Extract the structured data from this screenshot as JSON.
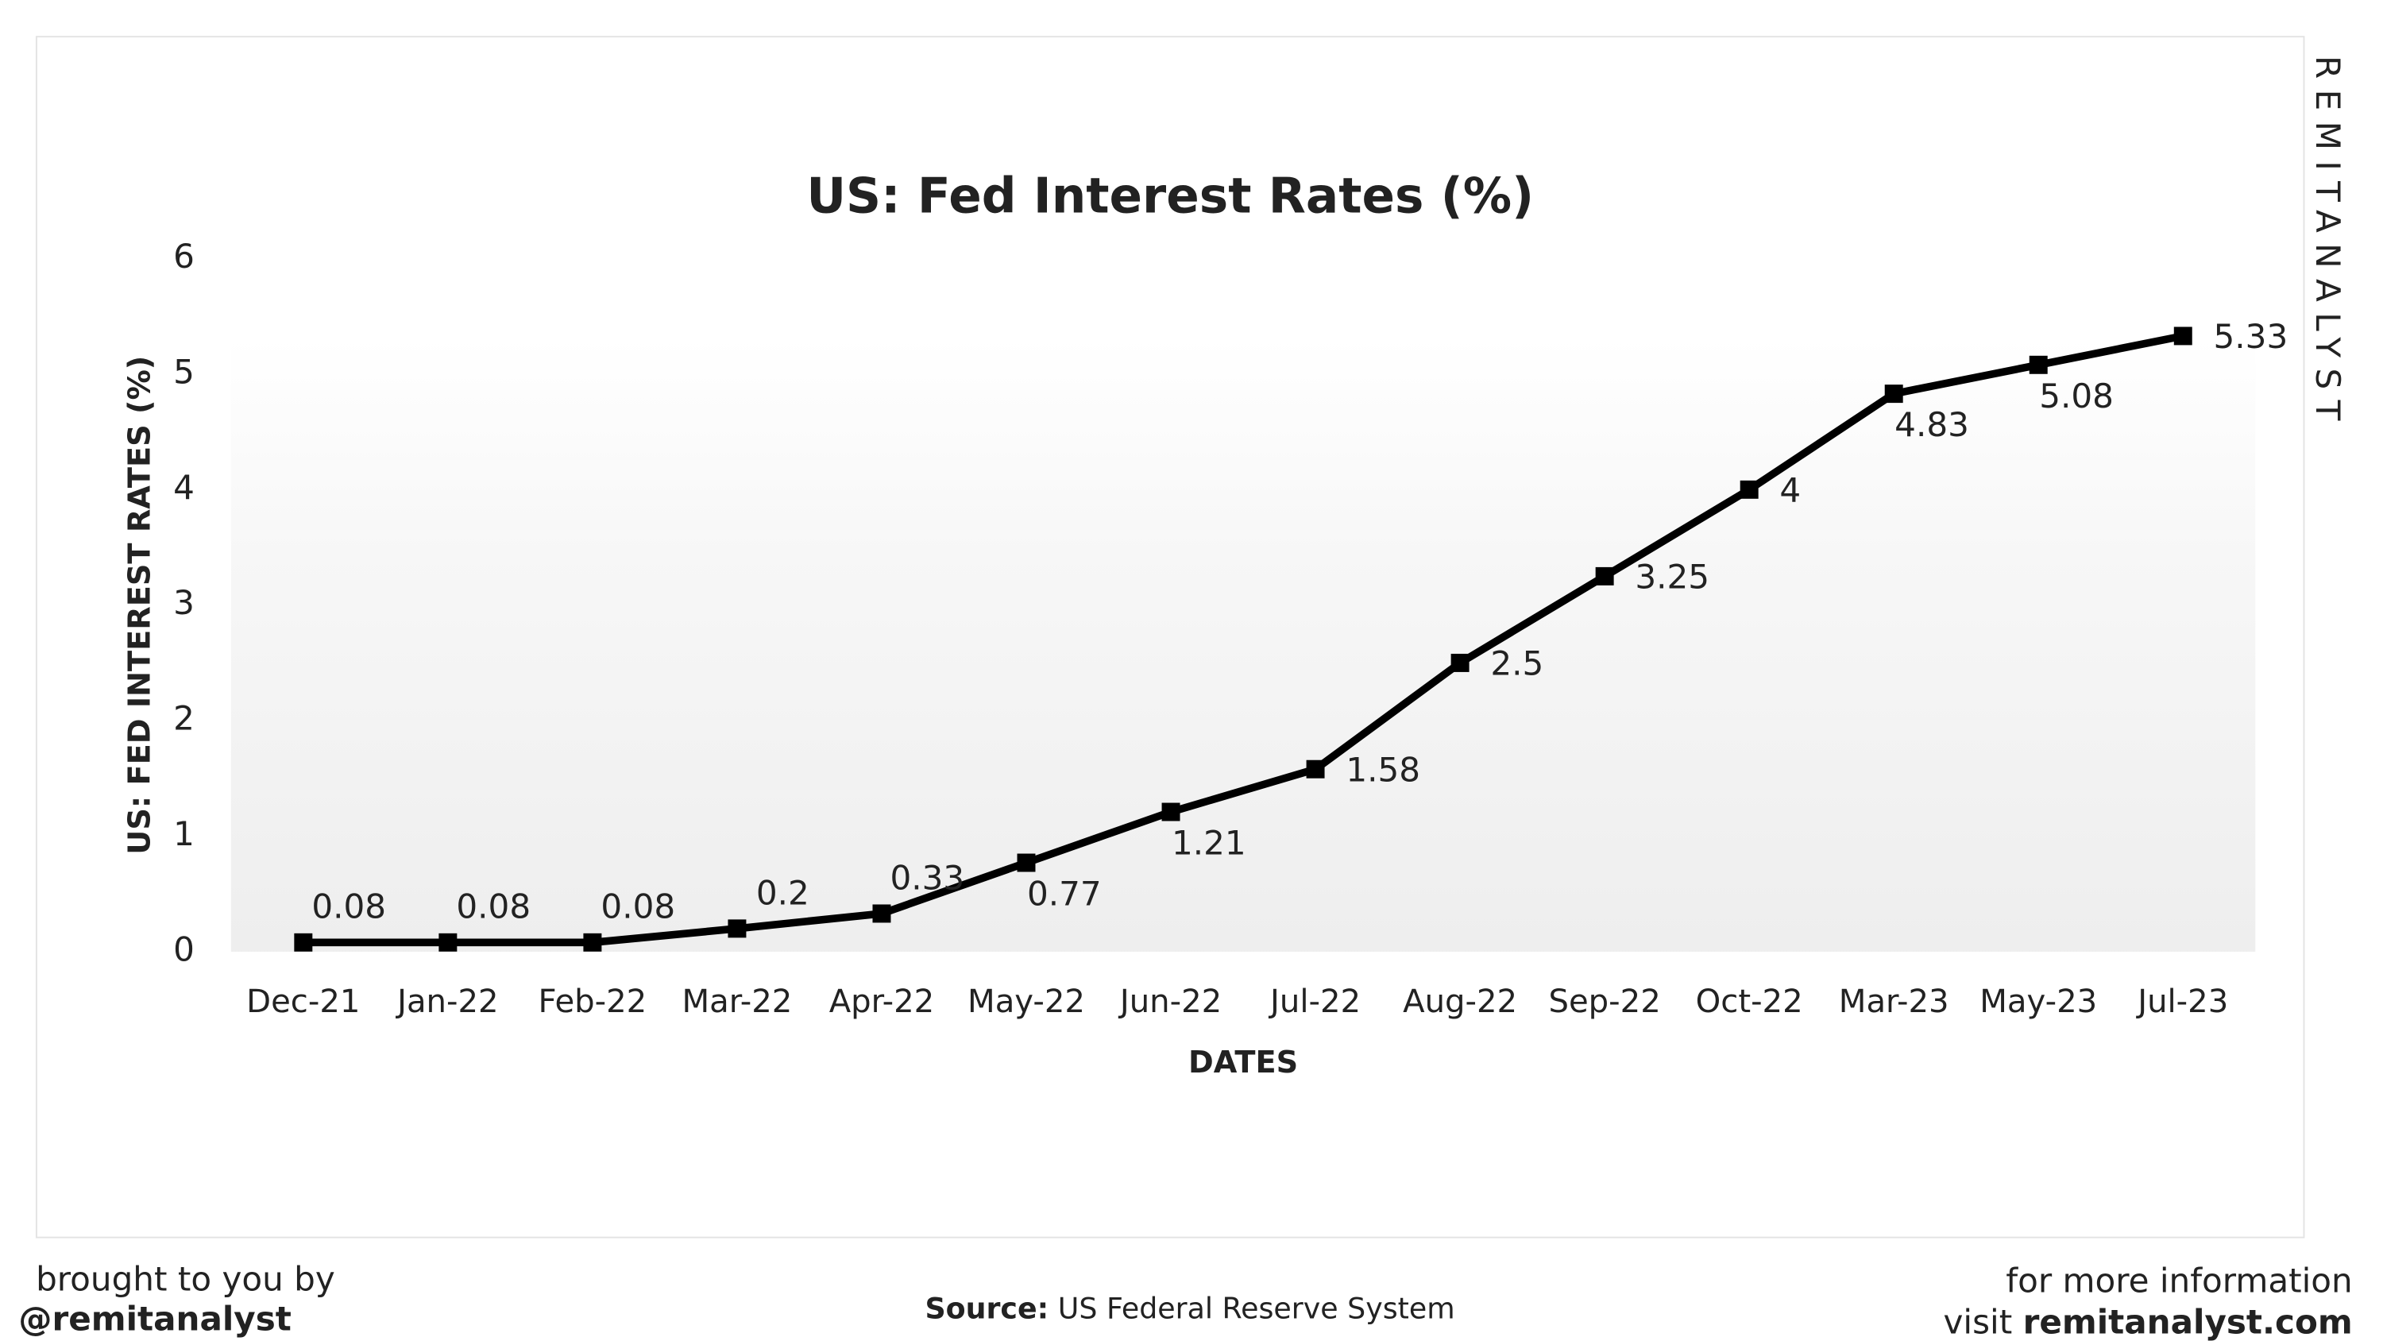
{
  "chart_data": {
    "type": "line",
    "title": "US: Fed Interest Rates (%)",
    "x_label": "DATES",
    "y_label": "US: FED INTEREST RATES (%)",
    "categories": [
      "Dec-21",
      "Jan-22",
      "Feb-22",
      "Mar-22",
      "Apr-22",
      "May-22",
      "Jun-22",
      "Jul-22",
      "Aug-22",
      "Sep-22",
      "Oct-22",
      "Mar-23",
      "May-23",
      "Jul-23"
    ],
    "values": [
      0.08,
      0.08,
      0.08,
      0.2,
      0.33,
      0.77,
      1.21,
      1.58,
      2.5,
      3.25,
      4,
      4.83,
      5.08,
      5.33
    ],
    "color": "#000000",
    "ylim": [
      0,
      6
    ],
    "yticks": [
      0,
      1,
      2,
      3,
      4,
      5,
      6
    ],
    "grid": false
  },
  "watermark": "REMITANALYST",
  "footer": {
    "left_line1": "brought to you by",
    "left_line2": "@remitanalyst",
    "source_label": "Source:",
    "source_text": "US Federal Reserve System",
    "right_line1": "for more information",
    "right_prefix": "visit",
    "right_link": "remitanalyst.com"
  }
}
